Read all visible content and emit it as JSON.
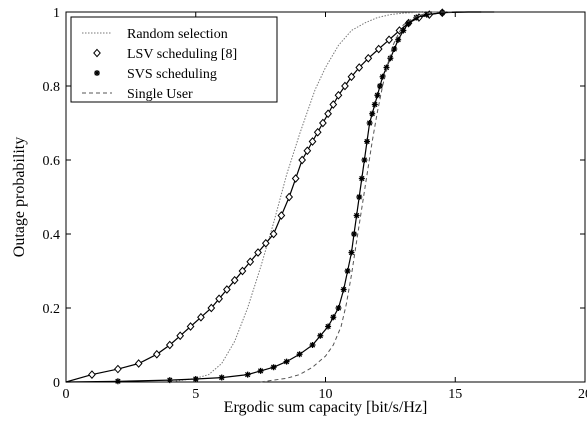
{
  "chart_data": {
    "type": "line",
    "xlabel": "Ergodic sum capacity [bit/s/Hz]",
    "ylabel": "Outage probability",
    "xlim": [
      0,
      20
    ],
    "ylim": [
      0,
      1
    ],
    "xticks": [
      "0",
      "5",
      "10",
      "15",
      "20"
    ],
    "yticks": [
      "0",
      "0.2",
      "0.4",
      "0.6",
      "0.8",
      "1"
    ],
    "grid": false,
    "legend_position": "top-left",
    "series": [
      {
        "name": "Random selection",
        "line_style": "dotted",
        "marker": "none",
        "color": "#777777",
        "x": [
          4.0,
          5.0,
          5.5,
          6.0,
          6.5,
          7.0,
          7.5,
          8.0,
          8.5,
          9.0,
          9.3,
          9.6,
          10.0,
          10.5,
          11.0,
          11.5,
          12.0,
          12.5,
          13.0,
          13.5,
          14.0,
          15.0
        ],
        "y": [
          0.0,
          0.01,
          0.02,
          0.05,
          0.11,
          0.2,
          0.31,
          0.43,
          0.56,
          0.67,
          0.73,
          0.79,
          0.85,
          0.91,
          0.95,
          0.97,
          0.985,
          0.993,
          0.997,
          0.999,
          1.0,
          1.0
        ]
      },
      {
        "name": "LSV scheduling [8]",
        "line_style": "solid",
        "marker": "diamond",
        "color": "#000000",
        "x": [
          0.0,
          1.0,
          2.0,
          2.8,
          3.5,
          4.0,
          4.4,
          4.8,
          5.2,
          5.6,
          5.9,
          6.2,
          6.5,
          6.8,
          7.1,
          7.4,
          7.7,
          8.0,
          8.3,
          8.6,
          8.85,
          9.1,
          9.3,
          9.5,
          9.7,
          9.9,
          10.1,
          10.3,
          10.5,
          10.75,
          11.0,
          11.3,
          11.65,
          12.05,
          12.45,
          12.85,
          13.2,
          13.6,
          14.0,
          14.5,
          15.0,
          16.0
        ],
        "y": [
          0.0,
          0.02,
          0.035,
          0.05,
          0.075,
          0.1,
          0.125,
          0.15,
          0.175,
          0.2,
          0.225,
          0.25,
          0.275,
          0.3,
          0.325,
          0.35,
          0.375,
          0.4,
          0.45,
          0.5,
          0.55,
          0.6,
          0.625,
          0.65,
          0.675,
          0.7,
          0.725,
          0.75,
          0.775,
          0.8,
          0.825,
          0.85,
          0.875,
          0.9,
          0.925,
          0.95,
          0.97,
          0.985,
          0.993,
          0.998,
          1.0,
          1.0
        ]
      },
      {
        "name": "SVS scheduling",
        "line_style": "solid",
        "marker": "star",
        "color": "#000000",
        "x": [
          0.0,
          2.0,
          4.0,
          5.0,
          6.0,
          7.0,
          7.5,
          8.0,
          8.5,
          9.0,
          9.5,
          9.8,
          10.1,
          10.3,
          10.5,
          10.7,
          10.85,
          11.0,
          11.1,
          11.2,
          11.3,
          11.4,
          11.5,
          11.6,
          11.7,
          11.8,
          11.9,
          12.0,
          12.1,
          12.2,
          12.35,
          12.5,
          12.65,
          12.8,
          13.0,
          13.2,
          13.5,
          13.9,
          14.5,
          15.5,
          16.5
        ],
        "y": [
          0.0,
          0.002,
          0.005,
          0.008,
          0.012,
          0.02,
          0.03,
          0.04,
          0.055,
          0.075,
          0.1,
          0.125,
          0.15,
          0.175,
          0.2,
          0.25,
          0.3,
          0.35,
          0.4,
          0.45,
          0.5,
          0.55,
          0.6,
          0.65,
          0.7,
          0.725,
          0.75,
          0.775,
          0.8,
          0.825,
          0.85,
          0.875,
          0.9,
          0.925,
          0.95,
          0.97,
          0.985,
          0.993,
          0.998,
          1.0,
          1.0
        ]
      },
      {
        "name": "Single User",
        "line_style": "dashed",
        "marker": "none",
        "color": "#555555",
        "x": [
          7.5,
          8.0,
          8.5,
          9.0,
          9.5,
          10.0,
          10.3,
          10.6,
          10.8,
          11.0,
          11.2,
          11.4,
          11.6,
          11.8,
          12.0,
          12.2,
          12.4,
          12.6,
          12.8,
          13.0,
          13.4,
          13.8,
          14.2,
          15.0
        ],
        "y": [
          0.0,
          0.005,
          0.01,
          0.02,
          0.04,
          0.07,
          0.1,
          0.15,
          0.21,
          0.29,
          0.38,
          0.47,
          0.56,
          0.65,
          0.73,
          0.8,
          0.86,
          0.91,
          0.94,
          0.965,
          0.985,
          0.995,
          1.0,
          1.0
        ]
      }
    ]
  }
}
